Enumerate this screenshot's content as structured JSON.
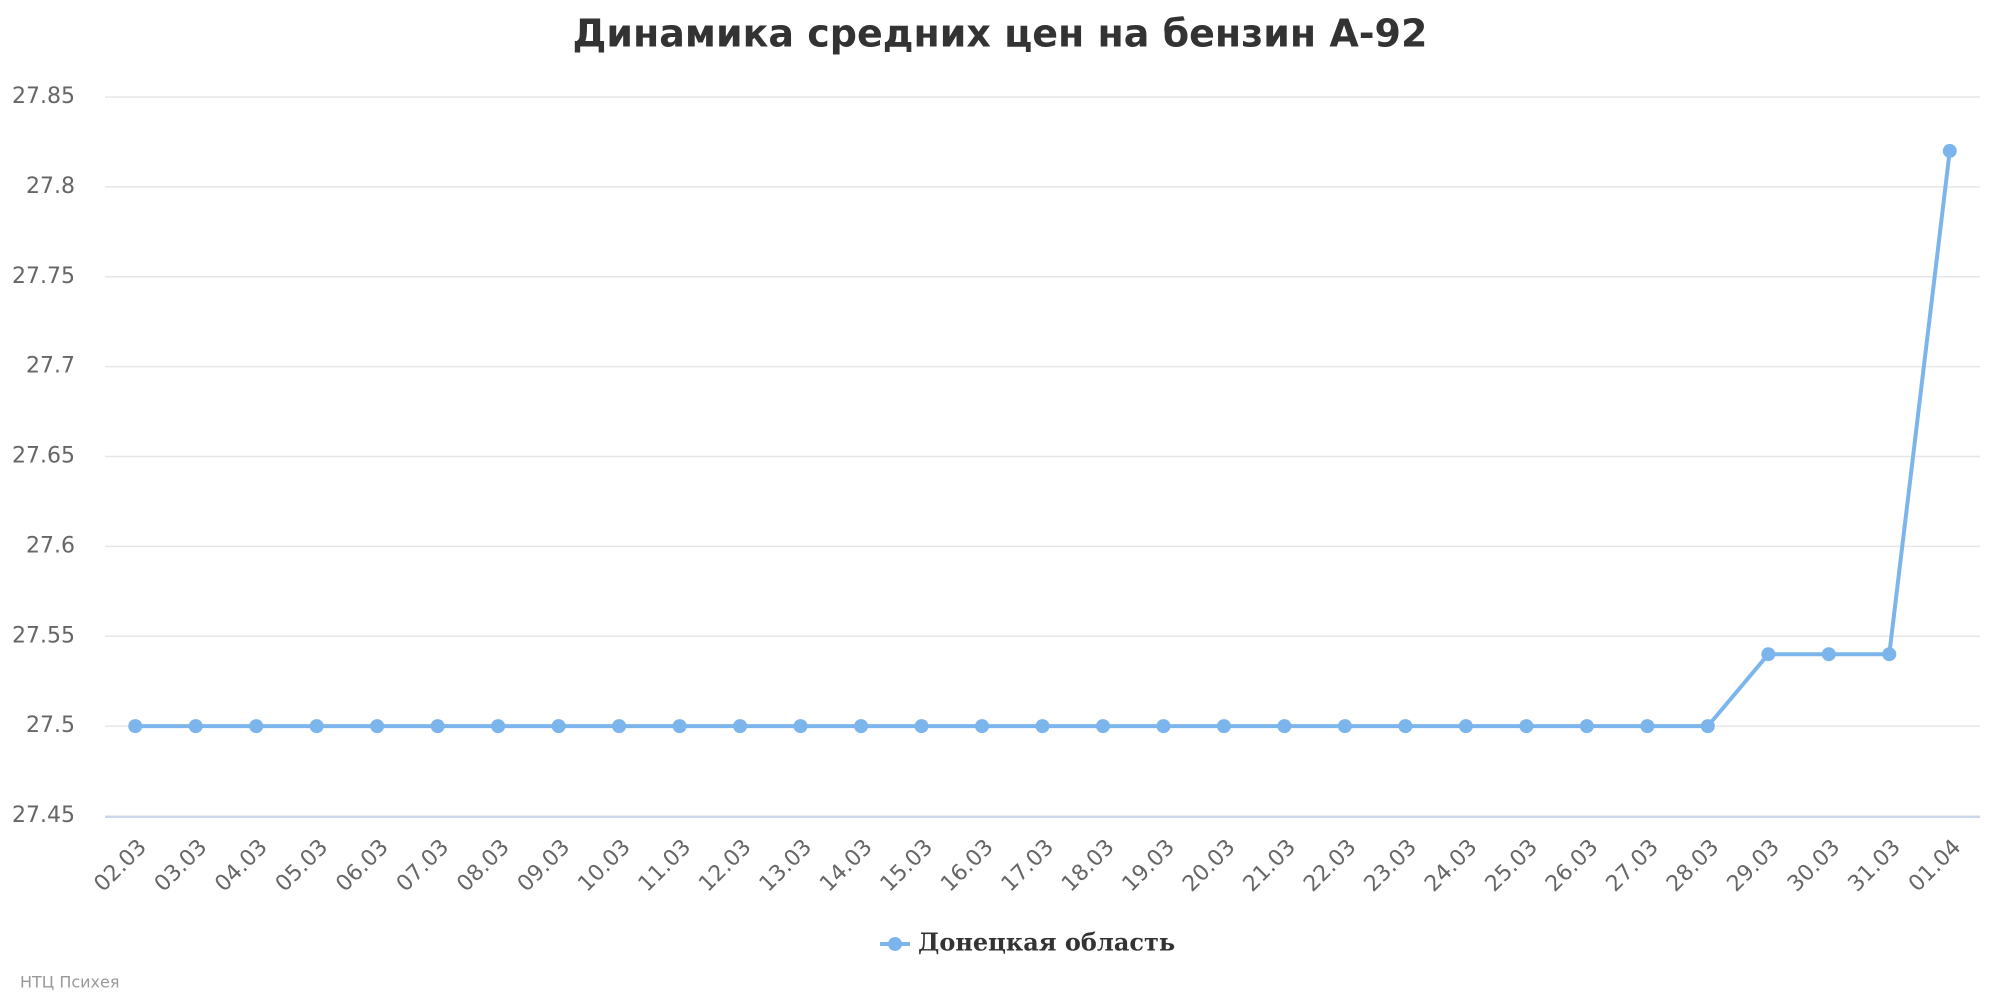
{
  "chart_data": {
    "type": "line",
    "title": "Динамика средних цен на бензин А-92",
    "categories": [
      "02.03",
      "03.03",
      "04.03",
      "05.03",
      "06.03",
      "07.03",
      "08.03",
      "09.03",
      "10.03",
      "11.03",
      "12.03",
      "13.03",
      "14.03",
      "15.03",
      "16.03",
      "17.03",
      "18.03",
      "19.03",
      "20.03",
      "21.03",
      "22.03",
      "23.03",
      "24.03",
      "25.03",
      "26.03",
      "27.03",
      "28.03",
      "29.03",
      "30.03",
      "31.03",
      "01.04"
    ],
    "series": [
      {
        "name": "Донецкая область",
        "color": "#7cb5ec",
        "values": [
          27.5,
          27.5,
          27.5,
          27.5,
          27.5,
          27.5,
          27.5,
          27.5,
          27.5,
          27.5,
          27.5,
          27.5,
          27.5,
          27.5,
          27.5,
          27.5,
          27.5,
          27.5,
          27.5,
          27.5,
          27.5,
          27.5,
          27.5,
          27.5,
          27.5,
          27.5,
          27.5,
          27.54,
          27.54,
          27.54,
          27.82
        ]
      }
    ],
    "ylim": [
      27.45,
      27.85
    ],
    "yticks": [
      27.45,
      27.5,
      27.55,
      27.6,
      27.65,
      27.7,
      27.75,
      27.8,
      27.85
    ],
    "grid": true,
    "legend": "bottom",
    "credit": "НТЦ Психея"
  }
}
